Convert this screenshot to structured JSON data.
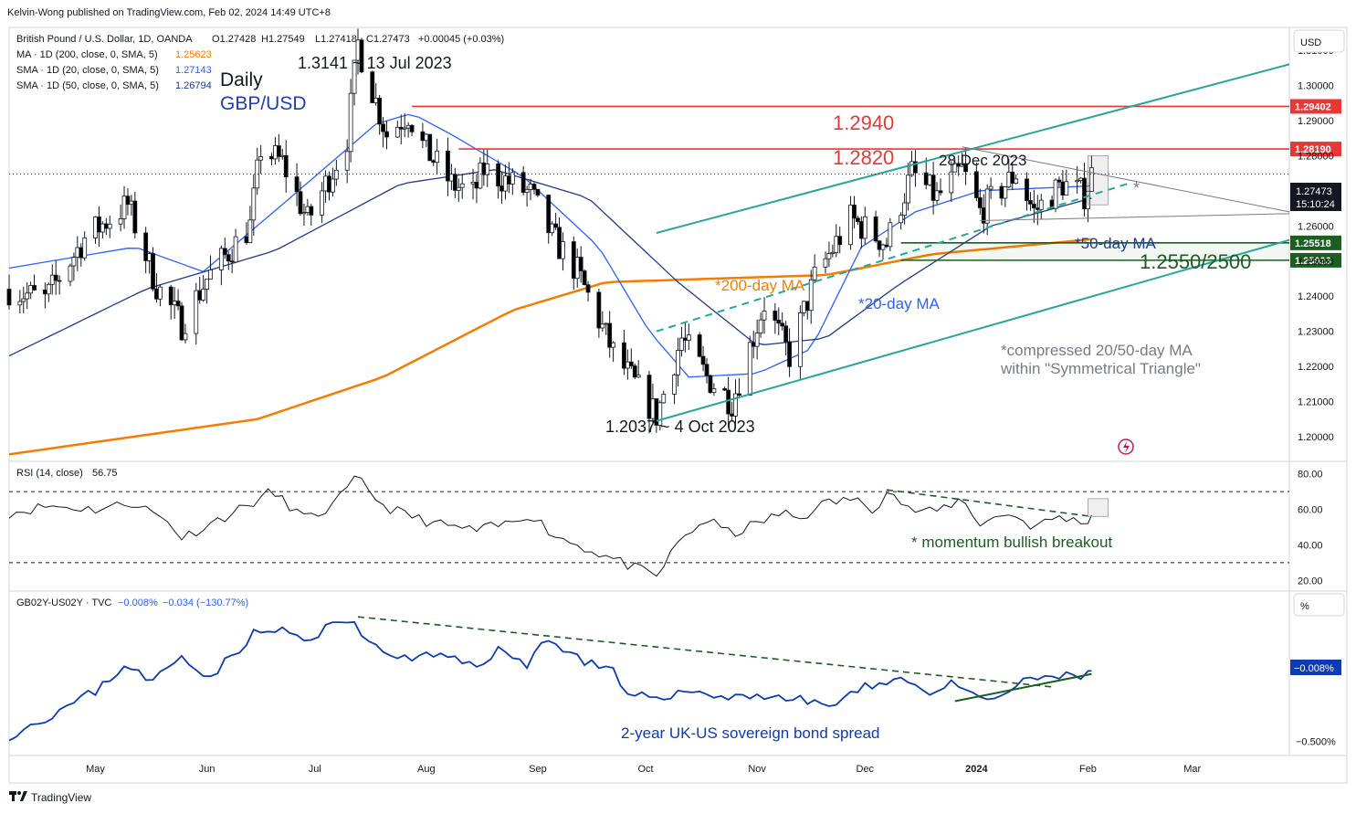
{
  "header": {
    "published": "Kelvin-Wong published on TradingView.com, Feb 02, 2024 14:49 UTC+8",
    "symbol_line": "British Pound / U.S. Dollar, 1D, OANDA",
    "ohlc": {
      "o": "O1.27428",
      "h": "H1.27549",
      "l": "L1.27418",
      "c": "C1.27473",
      "chg": "+0.00045 (+0.03%)"
    },
    "ma200_label": "MA · 1D (200, close, 0, SMA, 5)",
    "ma200_value": "1.25623",
    "sma20_label": "SMA · 1D (20, close, 0, SMA, 5)",
    "sma20_value": "1.27143",
    "sma50_label": "SMA · 1D (50, close, 0, SMA, 5)",
    "sma50_value": "1.26794",
    "currency_button": "USD",
    "timeframe": "Daily",
    "pair": "GBP/USD"
  },
  "colors": {
    "up": "#ffffff",
    "down": "#000000",
    "sma20": "#2962ff",
    "sma50": "#1e3a8a",
    "ma200": "#f57c00",
    "resistance": "#e53935",
    "support": "#1b5e20",
    "channel": "#26a69a",
    "rsi": "#131722",
    "spread": "#0d3cb0",
    "annot_blue": "#2962ff"
  },
  "chart_data": [
    {
      "type": "candlestick",
      "title": "British Pound / U.S. Dollar, 1D, OANDA",
      "ylabel": "USD",
      "ylim": [
        1.193,
        1.3165
      ],
      "y_ticks": [
        1.2,
        1.21,
        1.22,
        1.23,
        1.24,
        1.25,
        1.26,
        1.27,
        1.28,
        1.29,
        1.3,
        1.31
      ],
      "y_tick_labels": [
        "1.20000",
        "1.21000",
        "1.22000",
        "1.23000",
        "1.24000",
        "1.25000",
        "1.26000",
        "1.27000",
        "1.28000",
        "1.29000",
        "1.30000",
        "1.31000"
      ],
      "x_ticks": [
        {
          "label": "May",
          "date": "2023-05-01"
        },
        {
          "label": "Jun",
          "date": "2023-06-01"
        },
        {
          "label": "Jul",
          "date": "2023-07-01"
        },
        {
          "label": "Aug",
          "date": "2023-08-01"
        },
        {
          "label": "Sep",
          "date": "2023-09-01"
        },
        {
          "label": "Oct",
          "date": "2023-10-01"
        },
        {
          "label": "Nov",
          "date": "2023-11-01"
        },
        {
          "label": "Dec",
          "date": "2023-12-01"
        },
        {
          "label": "2024",
          "date": "2024-01-01"
        },
        {
          "label": "Feb",
          "date": "2024-02-01"
        },
        {
          "label": "Mar",
          "date": "2024-03-01"
        }
      ],
      "x_range": [
        "2023-04-07",
        "2024-03-28"
      ],
      "price_path": [
        [
          "2023-04-07",
          1.242
        ],
        [
          "2023-04-17",
          1.239
        ],
        [
          "2023-04-28",
          1.2565
        ],
        [
          "2023-05-10",
          1.266
        ],
        [
          "2023-05-18",
          1.243
        ],
        [
          "2023-05-25",
          1.232
        ],
        [
          "2023-06-01",
          1.245
        ],
        [
          "2023-06-13",
          1.26
        ],
        [
          "2023-06-16",
          1.282
        ],
        [
          "2023-06-22",
          1.278
        ],
        [
          "2023-06-29",
          1.2615
        ],
        [
          "2023-07-06",
          1.276
        ],
        [
          "2023-07-10",
          1.285
        ],
        [
          "2023-07-13",
          1.312
        ],
        [
          "2023-07-14",
          1.308
        ],
        [
          "2023-07-21",
          1.286
        ],
        [
          "2023-07-27",
          1.292
        ],
        [
          "2023-07-31",
          1.283
        ],
        [
          "2023-08-08",
          1.272
        ],
        [
          "2023-08-14",
          1.269
        ],
        [
          "2023-08-17",
          1.276
        ],
        [
          "2023-08-23",
          1.273
        ],
        [
          "2023-08-30",
          1.269
        ],
        [
          "2023-09-05",
          1.257
        ],
        [
          "2023-09-12",
          1.247
        ],
        [
          "2023-09-22",
          1.224
        ],
        [
          "2023-10-04",
          1.206
        ],
        [
          "2023-10-11",
          1.228
        ],
        [
          "2023-10-18",
          1.217
        ],
        [
          "2023-10-25",
          1.21
        ],
        [
          "2023-11-03",
          1.238
        ],
        [
          "2023-11-10",
          1.223
        ],
        [
          "2023-11-17",
          1.245
        ],
        [
          "2023-11-27",
          1.262
        ],
        [
          "2023-12-07",
          1.255
        ],
        [
          "2023-12-14",
          1.275
        ],
        [
          "2023-12-21",
          1.268
        ],
        [
          "2023-12-28",
          1.276
        ],
        [
          "2024-01-02",
          1.264
        ],
        [
          "2024-01-12",
          1.275
        ],
        [
          "2024-01-17",
          1.264
        ],
        [
          "2024-01-25",
          1.272
        ],
        [
          "2024-01-31",
          1.269
        ],
        [
          "2024-02-02",
          1.2747
        ]
      ],
      "last_price": 1.27473,
      "series_note": "Candle OHLC values are generated to follow the price path; exact per-day values are not printed in the image.",
      "overlays": [
        {
          "name": "MA 200",
          "value": 1.25623,
          "path": [
            [
              "2023-04-07",
              1.195
            ],
            [
              "2023-06-15",
              1.205
            ],
            [
              "2023-07-20",
              1.217
            ],
            [
              "2023-08-25",
              1.236
            ],
            [
              "2023-09-20",
              1.244
            ],
            [
              "2023-10-20",
              1.245
            ],
            [
              "2023-11-20",
              1.246
            ],
            [
              "2023-12-20",
              1.252
            ],
            [
              "2024-02-02",
              1.2562
            ]
          ]
        },
        {
          "name": "SMA 20",
          "value": 1.27143,
          "path": [
            [
              "2023-04-07",
              1.248
            ],
            [
              "2023-05-12",
              1.254
            ],
            [
              "2023-05-31",
              1.247
            ],
            [
              "2023-06-23",
              1.267
            ],
            [
              "2023-07-18",
              1.289
            ],
            [
              "2023-07-28",
              1.292
            ],
            [
              "2023-08-08",
              1.286
            ],
            [
              "2023-08-28",
              1.274
            ],
            [
              "2023-09-18",
              1.254
            ],
            [
              "2023-10-02",
              1.23
            ],
            [
              "2023-10-13",
              1.217
            ],
            [
              "2023-11-01",
              1.218
            ],
            [
              "2023-11-16",
              1.225
            ],
            [
              "2023-11-30",
              1.254
            ],
            [
              "2023-12-15",
              1.264
            ],
            [
              "2024-01-02",
              1.27
            ],
            [
              "2024-02-02",
              1.2714
            ]
          ]
        },
        {
          "name": "SMA 50",
          "value": 1.26794,
          "path": [
            [
              "2023-04-07",
              1.223
            ],
            [
              "2023-05-15",
              1.242
            ],
            [
              "2023-06-20",
              1.253
            ],
            [
              "2023-07-25",
              1.272
            ],
            [
              "2023-08-20",
              1.276
            ],
            [
              "2023-09-15",
              1.268
            ],
            [
              "2023-10-10",
              1.244
            ],
            [
              "2023-11-01",
              1.226
            ],
            [
              "2023-11-20",
              1.228
            ],
            [
              "2023-12-10",
              1.243
            ],
            [
              "2024-01-05",
              1.26
            ],
            [
              "2024-02-02",
              1.2679
            ]
          ]
        }
      ],
      "levels": [
        {
          "name": "resistance 1.2940",
          "value": 1.29402,
          "label": "1.29402",
          "from": "2023-07-28"
        },
        {
          "name": "resistance 1.2820",
          "value": 1.2819,
          "label": "1.28190",
          "from": "2023-08-10"
        },
        {
          "name": "support 1.2550",
          "value": 1.25518,
          "label": "1.25518",
          "from": "2023-12-11"
        },
        {
          "name": "support 1.2500",
          "value": 1.25023,
          "label": "1.25023",
          "from": "2023-12-11"
        }
      ],
      "trendlines": [
        {
          "name": "channel top",
          "points": [
            [
              "2023-10-04",
              1.258
            ],
            [
              "2024-03-28",
              1.306
            ]
          ]
        },
        {
          "name": "channel bottom",
          "points": [
            [
              "2023-10-04",
              1.2045
            ],
            [
              "2024-03-28",
              1.256
            ]
          ]
        },
        {
          "name": "dashed mid support",
          "points": [
            [
              "2023-10-04",
              1.23
            ],
            [
              "2024-02-12",
              1.272
            ]
          ]
        },
        {
          "name": "triangle upper",
          "points": [
            [
              "2023-12-28",
              1.2825
            ],
            [
              "2024-03-28",
              1.264
            ]
          ]
        },
        {
          "name": "triangle lower",
          "points": [
            [
              "2024-01-02",
              1.2615
            ],
            [
              "2024-03-28",
              1.2635
            ]
          ]
        }
      ],
      "annotations": {
        "high": "1.3141 ~ 13 Jul 2023",
        "low": "1.2037 ~ 4 Oct 2023",
        "dec_high": "28 Dec 2023",
        "r1": "1.2940",
        "r2": "1.2820",
        "support": "1.2550/2500",
        "ma200": "*200-day MA",
        "ma20": "*20-day MA",
        "ma50": "*50-day MA",
        "note_line1": "*compressed 20/50-day MA",
        "note_line2": "within \"Symmetrical Triangle\"",
        "star": "*"
      },
      "price_tag": "1.27473",
      "countdown": "15:10:24"
    },
    {
      "type": "line",
      "title": "RSI (14, close)",
      "value_label": "56.75",
      "ylim": [
        14,
        87
      ],
      "y_ticks": [
        20,
        40,
        60,
        80
      ],
      "y_tick_labels": [
        "20.00",
        "40.00",
        "60.00",
        "80.00"
      ],
      "levels": [
        70,
        30
      ],
      "points": [
        [
          "2023-04-07",
          58
        ],
        [
          "2023-04-18",
          62
        ],
        [
          "2023-05-01",
          60
        ],
        [
          "2023-05-12",
          64
        ],
        [
          "2023-05-22",
          52
        ],
        [
          "2023-05-25",
          44
        ],
        [
          "2023-06-06",
          56
        ],
        [
          "2023-06-14",
          64
        ],
        [
          "2023-06-19",
          70
        ],
        [
          "2023-06-29",
          54
        ],
        [
          "2023-07-06",
          62
        ],
        [
          "2023-07-13",
          78
        ],
        [
          "2023-07-20",
          62
        ],
        [
          "2023-07-25",
          58
        ],
        [
          "2023-08-03",
          52
        ],
        [
          "2023-08-15",
          48
        ],
        [
          "2023-08-24",
          52
        ],
        [
          "2023-08-30",
          58
        ],
        [
          "2023-09-05",
          46
        ],
        [
          "2023-09-12",
          40
        ],
        [
          "2023-09-22",
          32
        ],
        [
          "2023-10-04",
          22
        ],
        [
          "2023-10-11",
          44
        ],
        [
          "2023-10-18",
          54
        ],
        [
          "2023-10-25",
          46
        ],
        [
          "2023-11-01",
          52
        ],
        [
          "2023-11-08",
          58
        ],
        [
          "2023-11-14",
          54
        ],
        [
          "2023-11-17",
          62
        ],
        [
          "2023-11-27",
          66
        ],
        [
          "2023-12-04",
          60
        ],
        [
          "2023-12-07",
          72
        ],
        [
          "2023-12-13",
          60
        ],
        [
          "2023-12-20",
          58
        ],
        [
          "2023-12-28",
          66
        ],
        [
          "2024-01-02",
          52
        ],
        [
          "2024-01-10",
          58
        ],
        [
          "2024-01-17",
          50
        ],
        [
          "2024-01-24",
          56
        ],
        [
          "2024-01-31",
          52
        ],
        [
          "2024-02-02",
          56.75
        ]
      ],
      "trendline": [
        [
          "2023-12-07",
          71
        ],
        [
          "2024-02-02",
          56
        ]
      ],
      "annotation": "* momentum bullish breakout"
    },
    {
      "type": "line",
      "title": "GB02Y-US02Y · TVC",
      "values_label": [
        "−0.008%",
        "−0.034 (−130.77%)"
      ],
      "ylabel": "%",
      "ylim": [
        -0.6,
        0.55
      ],
      "y_ticks": [
        -0.5
      ],
      "y_tick_labels": [
        "−0.500%"
      ],
      "last_value_tag": "−0.008%",
      "points": [
        [
          "2023-04-07",
          -0.46
        ],
        [
          "2023-04-20",
          -0.3
        ],
        [
          "2023-05-01",
          -0.15
        ],
        [
          "2023-05-10",
          0.05
        ],
        [
          "2023-05-16",
          -0.1
        ],
        [
          "2023-05-25",
          0.1
        ],
        [
          "2023-06-02",
          -0.05
        ],
        [
          "2023-06-14",
          0.25
        ],
        [
          "2023-06-23",
          0.28
        ],
        [
          "2023-06-29",
          0.18
        ],
        [
          "2023-07-06",
          0.32
        ],
        [
          "2023-07-12",
          0.35
        ],
        [
          "2023-07-17",
          0.15
        ],
        [
          "2023-07-26",
          0.08
        ],
        [
          "2023-08-04",
          0.1
        ],
        [
          "2023-08-15",
          0.03
        ],
        [
          "2023-08-21",
          0.14
        ],
        [
          "2023-08-29",
          0.02
        ],
        [
          "2023-09-01",
          0.22
        ],
        [
          "2023-09-08",
          0.15
        ],
        [
          "2023-09-15",
          0.05
        ],
        [
          "2023-09-22",
          -0.02
        ],
        [
          "2023-09-26",
          -0.2
        ],
        [
          "2023-10-05",
          -0.18
        ],
        [
          "2023-10-16",
          -0.15
        ],
        [
          "2023-10-24",
          -0.2
        ],
        [
          "2023-10-31",
          -0.17
        ],
        [
          "2023-11-08",
          -0.2
        ],
        [
          "2023-11-15",
          -0.22
        ],
        [
          "2023-11-22",
          -0.25
        ],
        [
          "2023-11-30",
          -0.14
        ],
        [
          "2023-12-05",
          -0.08
        ],
        [
          "2023-12-12",
          -0.06
        ],
        [
          "2023-12-18",
          -0.16
        ],
        [
          "2023-12-26",
          -0.1
        ],
        [
          "2024-01-02",
          -0.22
        ],
        [
          "2024-01-08",
          -0.18
        ],
        [
          "2024-01-15",
          -0.08
        ],
        [
          "2024-01-22",
          -0.04
        ],
        [
          "2024-01-29",
          -0.06
        ],
        [
          "2024-02-02",
          -0.008
        ]
      ],
      "trendline_down": [
        [
          "2023-07-13",
          0.37
        ],
        [
          "2024-01-22",
          -0.12
        ]
      ],
      "trendline_up": [
        [
          "2023-12-26",
          -0.22
        ],
        [
          "2024-02-02",
          -0.03
        ]
      ],
      "annotation": "2-year UK-US sovereign bond spread"
    }
  ],
  "footer": {
    "brand": "TradingView"
  }
}
